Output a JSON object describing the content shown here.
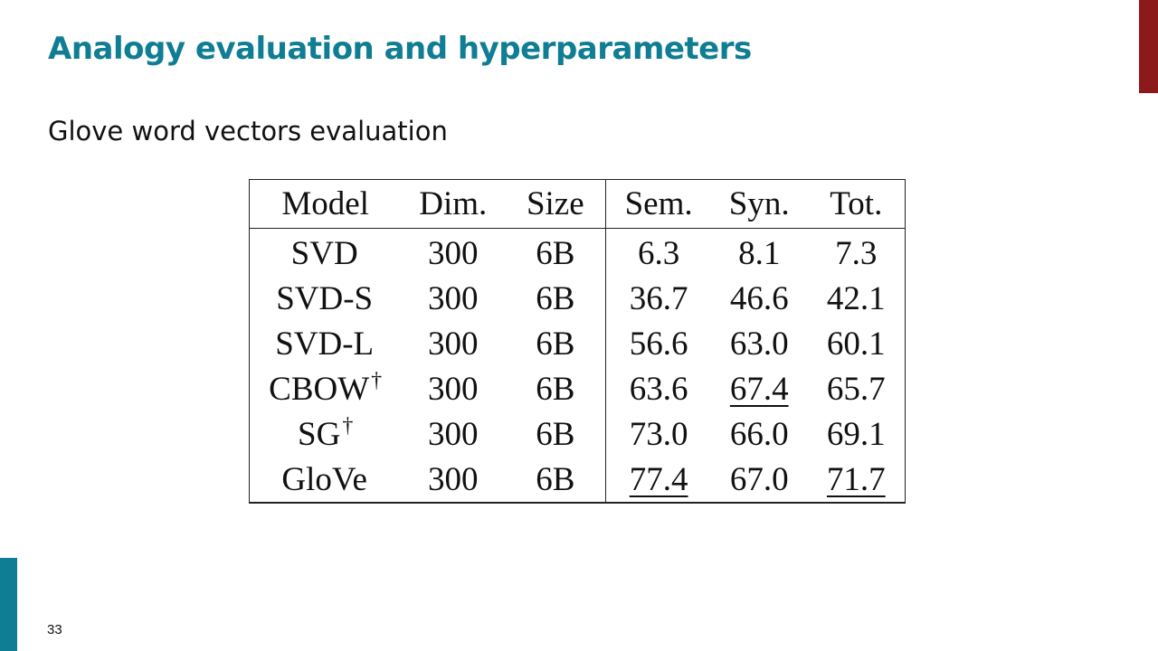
{
  "slide": {
    "title": "Analogy evaluation and hyperparameters",
    "subtitle": "Glove word vectors evaluation",
    "page_number": "33"
  },
  "colors": {
    "title": "#0f7d93",
    "corner_bar": "#8c1a1a",
    "left_accent": "#0f7d93"
  },
  "table": {
    "headers": [
      "Model",
      "Dim.",
      "Size",
      "Sem.",
      "Syn.",
      "Tot."
    ],
    "rows": [
      {
        "model": "SVD",
        "dagger": "",
        "dim": "300",
        "size": "6B",
        "sem": "6.3",
        "syn": "8.1",
        "tot": "7.3",
        "underline": []
      },
      {
        "model": "SVD-S",
        "dagger": "",
        "dim": "300",
        "size": "6B",
        "sem": "36.7",
        "syn": "46.6",
        "tot": "42.1",
        "underline": []
      },
      {
        "model": "SVD-L",
        "dagger": "",
        "dim": "300",
        "size": "6B",
        "sem": "56.6",
        "syn": "63.0",
        "tot": "60.1",
        "underline": []
      },
      {
        "model": "CBOW",
        "dagger": "†",
        "dim": "300",
        "size": "6B",
        "sem": "63.6",
        "syn": "67.4",
        "tot": "65.7",
        "underline": [
          "syn"
        ]
      },
      {
        "model": "SG",
        "dagger": "†",
        "dim": "300",
        "size": "6B",
        "sem": "73.0",
        "syn": "66.0",
        "tot": "69.1",
        "underline": []
      },
      {
        "model": "GloVe",
        "dagger": "",
        "dim": "300",
        "size": "6B",
        "sem": "77.4",
        "syn": "67.0",
        "tot": "71.7",
        "underline": [
          "sem",
          "tot"
        ]
      }
    ]
  }
}
